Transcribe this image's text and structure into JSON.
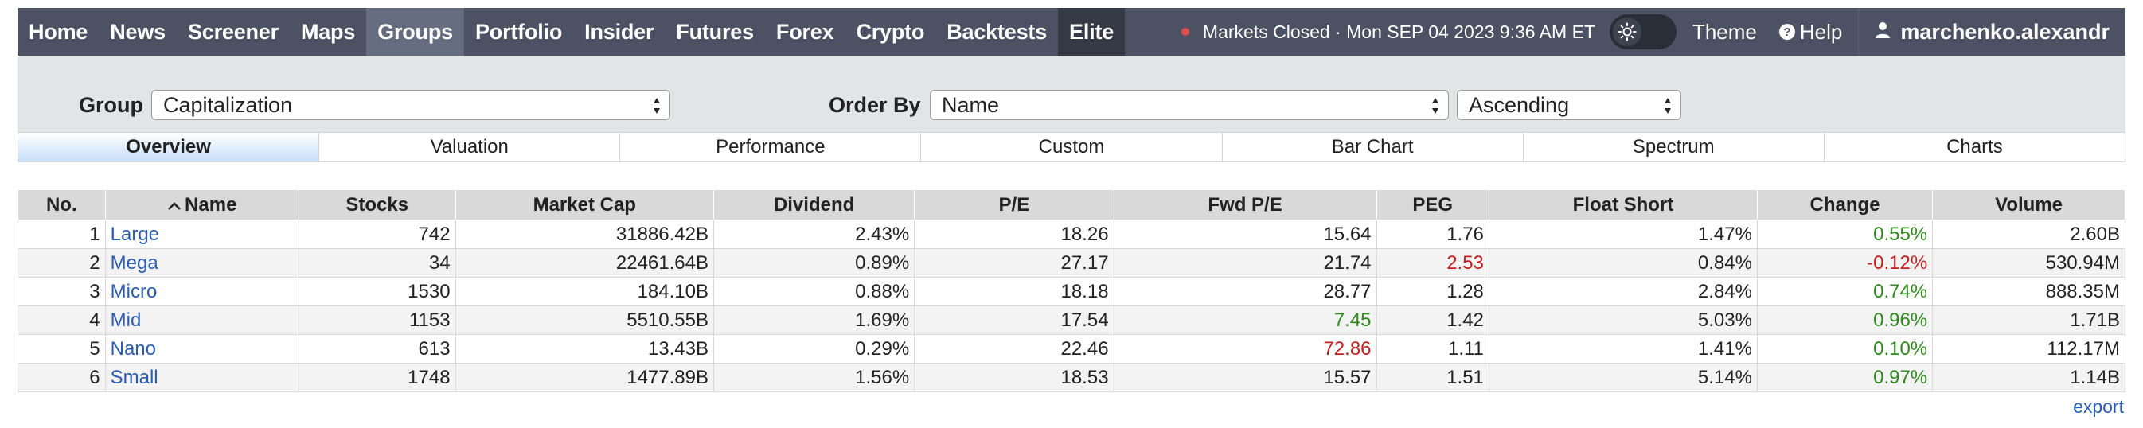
{
  "nav": {
    "items": [
      {
        "label": "Home",
        "name": "nav-home"
      },
      {
        "label": "News",
        "name": "nav-news"
      },
      {
        "label": "Screener",
        "name": "nav-screener"
      },
      {
        "label": "Maps",
        "name": "nav-maps"
      },
      {
        "label": "Groups",
        "name": "nav-groups",
        "active": true
      },
      {
        "label": "Portfolio",
        "name": "nav-portfolio"
      },
      {
        "label": "Insider",
        "name": "nav-insider"
      },
      {
        "label": "Futures",
        "name": "nav-futures"
      },
      {
        "label": "Forex",
        "name": "nav-forex"
      },
      {
        "label": "Crypto",
        "name": "nav-crypto"
      },
      {
        "label": "Backtests",
        "name": "nav-backtests"
      },
      {
        "label": "Elite",
        "name": "nav-elite",
        "elite": true
      }
    ],
    "market_status": "Markets Closed · Mon SEP 04 2023 9:36 AM ET",
    "theme_label": "Theme",
    "help_label": "Help",
    "username": "marchenko.alexandr"
  },
  "filters": {
    "group_label": "Group",
    "group_value": "Capitalization",
    "order_label": "Order By",
    "order_value": "Name",
    "direction_value": "Ascending"
  },
  "tabs": [
    {
      "label": "Overview",
      "active": true
    },
    {
      "label": "Valuation"
    },
    {
      "label": "Performance"
    },
    {
      "label": "Custom"
    },
    {
      "label": "Bar Chart"
    },
    {
      "label": "Spectrum"
    },
    {
      "label": "Charts"
    }
  ],
  "table": {
    "headers": [
      "No.",
      "Name",
      "Stocks",
      "Market Cap",
      "Dividend",
      "P/E",
      "Fwd P/E",
      "PEG",
      "Float Short",
      "Change",
      "Volume"
    ],
    "rows": [
      {
        "no": "1",
        "name": "Large",
        "stocks": "742",
        "market_cap": "31886.42B",
        "dividend": "2.43%",
        "pe": "18.26",
        "fwd_pe": "15.64",
        "fwd_pe_color": "",
        "peg": "1.76",
        "peg_color": "",
        "float_short": "1.47%",
        "change": "0.55%",
        "change_color": "pos",
        "volume": "2.60B"
      },
      {
        "no": "2",
        "name": "Mega",
        "stocks": "34",
        "market_cap": "22461.64B",
        "dividend": "0.89%",
        "pe": "27.17",
        "fwd_pe": "21.74",
        "fwd_pe_color": "",
        "peg": "2.53",
        "peg_color": "neg",
        "float_short": "0.84%",
        "change": "-0.12%",
        "change_color": "neg",
        "volume": "530.94M"
      },
      {
        "no": "3",
        "name": "Micro",
        "stocks": "1530",
        "market_cap": "184.10B",
        "dividend": "0.88%",
        "pe": "18.18",
        "fwd_pe": "28.77",
        "fwd_pe_color": "",
        "peg": "1.28",
        "peg_color": "",
        "float_short": "2.84%",
        "change": "0.74%",
        "change_color": "pos",
        "volume": "888.35M"
      },
      {
        "no": "4",
        "name": "Mid",
        "stocks": "1153",
        "market_cap": "5510.55B",
        "dividend": "1.69%",
        "pe": "17.54",
        "fwd_pe": "7.45",
        "fwd_pe_color": "pos",
        "peg": "1.42",
        "peg_color": "",
        "float_short": "5.03%",
        "change": "0.96%",
        "change_color": "pos",
        "volume": "1.71B"
      },
      {
        "no": "5",
        "name": "Nano",
        "stocks": "613",
        "market_cap": "13.43B",
        "dividend": "0.29%",
        "pe": "22.46",
        "fwd_pe": "72.86",
        "fwd_pe_color": "neg",
        "peg": "1.11",
        "peg_color": "",
        "float_short": "1.41%",
        "change": "0.10%",
        "change_color": "pos",
        "volume": "112.17M"
      },
      {
        "no": "6",
        "name": "Small",
        "stocks": "1748",
        "market_cap": "1477.89B",
        "dividend": "1.56%",
        "pe": "18.53",
        "fwd_pe": "15.57",
        "fwd_pe_color": "",
        "peg": "1.51",
        "peg_color": "",
        "float_short": "5.14%",
        "change": "0.97%",
        "change_color": "pos",
        "volume": "1.14B"
      }
    ]
  },
  "export_label": "export",
  "colors": {
    "nav_bg": "#4c5263",
    "link": "#2a5db0",
    "positive": "#2f8a1d",
    "negative": "#c0201f",
    "status_dot": "#e04b4b"
  },
  "icons": {
    "status": "red-dot-icon",
    "theme": "sun-icon",
    "help": "question-circle-icon",
    "user": "user-icon",
    "sort": "caret-up-icon",
    "select": "updown-arrows-icon"
  }
}
